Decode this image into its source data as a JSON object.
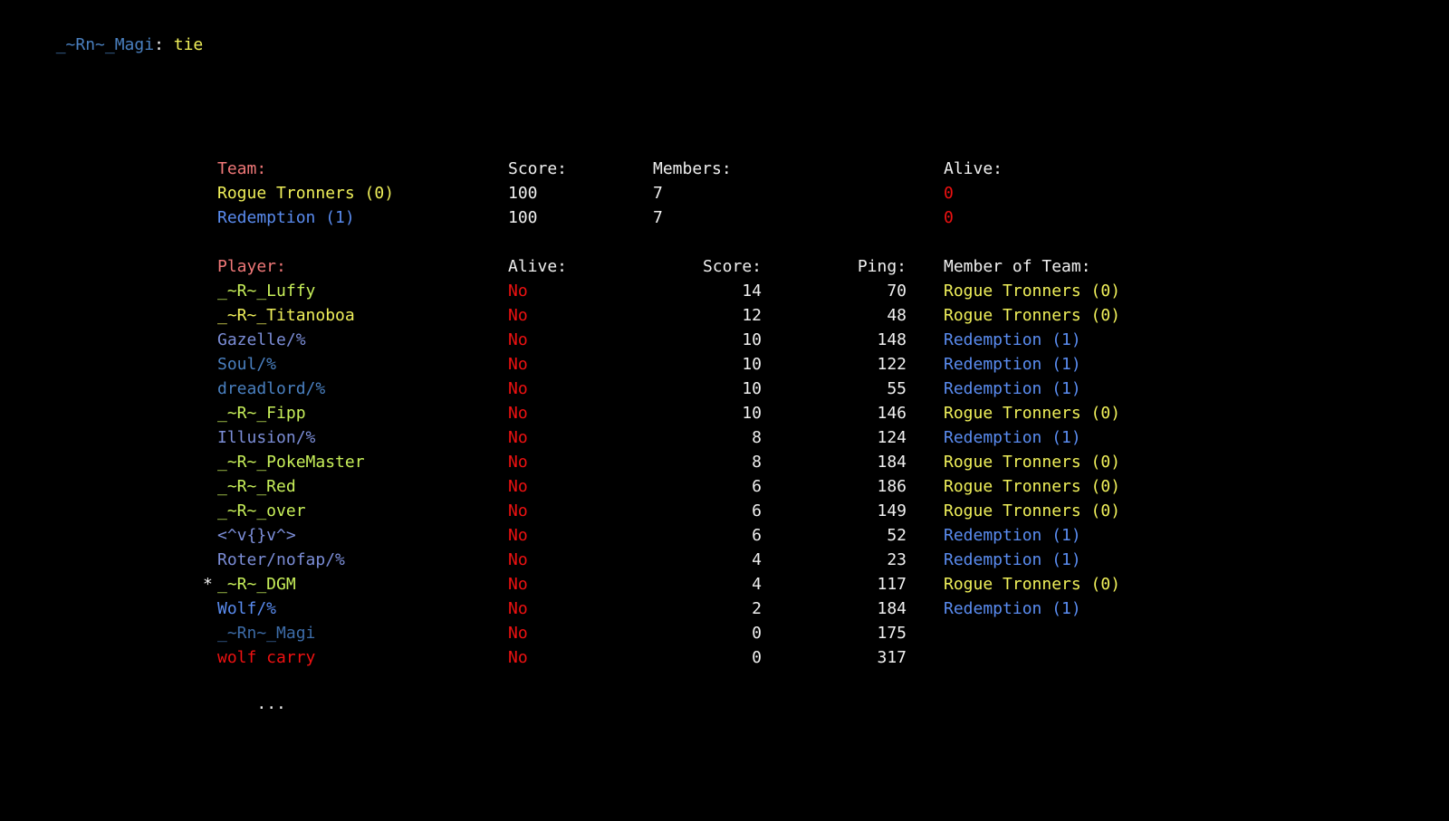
{
  "colors": {
    "header": "#f07878",
    "white": "#f0f0f0",
    "red": "#ee1111",
    "yellow": "#f0f05a",
    "green_yellow": "#c8f05a",
    "blue": "#5a8cf0",
    "slate": "#7c8ed8",
    "teal_blue": "#4a80c0",
    "dim_blue": "#3d6ca8"
  },
  "chat": {
    "sender": "_~Rn~_Magi",
    "separator": ": ",
    "message": "tie"
  },
  "teams_header": {
    "team": "Team:",
    "score": "Score:",
    "members": "Members:",
    "alive": "Alive:"
  },
  "teams": [
    {
      "name": "Rogue Tronners (0)",
      "score": "100",
      "members": "7",
      "alive": "0"
    },
    {
      "name": "Redemption (1)",
      "score": "100",
      "members": "7",
      "alive": "0"
    }
  ],
  "players_header": {
    "player": "Player:",
    "alive": "Alive:",
    "score": "Score:",
    "ping": "Ping:",
    "team": "Member of Team:"
  },
  "players": [
    {
      "marker": "",
      "name": "_~R~_Luffy",
      "alive": "No",
      "score": "14",
      "ping": "70",
      "team": "Rogue Tronners (0)"
    },
    {
      "marker": "",
      "name": "_~R~_Titanoboa",
      "alive": "No",
      "score": "12",
      "ping": "48",
      "team": "Rogue Tronners (0)"
    },
    {
      "marker": "",
      "name": "Gazelle/%",
      "alive": "No",
      "score": "10",
      "ping": "148",
      "team": "Redemption (1)"
    },
    {
      "marker": "",
      "name": "Soul/%",
      "alive": "No",
      "score": "10",
      "ping": "122",
      "team": "Redemption (1)"
    },
    {
      "marker": "",
      "name": "dreadlord/%",
      "alive": "No",
      "score": "10",
      "ping": "55",
      "team": "Redemption (1)"
    },
    {
      "marker": "",
      "name": "_~R~_Fipp",
      "alive": "No",
      "score": "10",
      "ping": "146",
      "team": "Rogue Tronners (0)"
    },
    {
      "marker": "",
      "name": "Illusion/%",
      "alive": "No",
      "score": "8",
      "ping": "124",
      "team": "Redemption (1)"
    },
    {
      "marker": "",
      "name": "_~R~_PokeMaster",
      "alive": "No",
      "score": "8",
      "ping": "184",
      "team": "Rogue Tronners (0)"
    },
    {
      "marker": "",
      "name": "_~R~_Red",
      "alive": "No",
      "score": "6",
      "ping": "186",
      "team": "Rogue Tronners (0)"
    },
    {
      "marker": "",
      "name": "_~R~_over",
      "alive": "No",
      "score": "6",
      "ping": "149",
      "team": "Rogue Tronners (0)"
    },
    {
      "marker": "",
      "name": "<^v{}v^>",
      "alive": "No",
      "score": "6",
      "ping": "52",
      "team": "Redemption (1)"
    },
    {
      "marker": "",
      "name": "Roter/nofap/%",
      "alive": "No",
      "score": "4",
      "ping": "23",
      "team": "Redemption (1)"
    },
    {
      "marker": "*",
      "name": "_~R~_DGM",
      "alive": "No",
      "score": "4",
      "ping": "117",
      "team": "Rogue Tronners (0)"
    },
    {
      "marker": "",
      "name": "Wolf/%",
      "alive": "No",
      "score": "2",
      "ping": "184",
      "team": "Redemption (1)"
    },
    {
      "marker": "",
      "name": "_~Rn~_Magi",
      "alive": "No",
      "score": "0",
      "ping": "175",
      "team": ""
    },
    {
      "marker": "",
      "name": "wolf carry",
      "alive": "No",
      "score": "0",
      "ping": "317",
      "team": ""
    }
  ],
  "more_indicator": "..."
}
